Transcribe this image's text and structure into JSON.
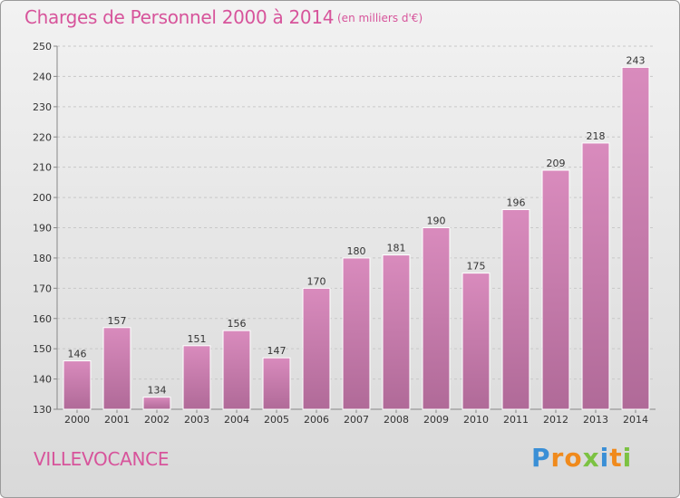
{
  "chart_data": {
    "type": "bar",
    "title": "Charges de Personnel 2000 à 2014",
    "subtitle": "(en milliers d'€)",
    "categories": [
      "2000",
      "2001",
      "2002",
      "2003",
      "2004",
      "2005",
      "2006",
      "2007",
      "2008",
      "2009",
      "2010",
      "2011",
      "2012",
      "2013",
      "2014"
    ],
    "values": [
      146,
      157,
      134,
      151,
      156,
      147,
      170,
      180,
      181,
      190,
      175,
      196,
      209,
      218,
      243
    ],
    "ylim": [
      130,
      250
    ],
    "yticks": [
      130,
      140,
      150,
      160,
      170,
      180,
      190,
      200,
      210,
      220,
      230,
      240,
      250
    ],
    "xlabel": "",
    "ylabel": "",
    "grid": true,
    "bar_color": "#d98bbd",
    "bar_color_dark": "#b06a98"
  },
  "commune": "VILLEVOCANCE",
  "brand": {
    "letters": [
      "P",
      "r",
      "o",
      "x",
      "i",
      "t",
      "i"
    ],
    "colors": [
      "#3a8fd6",
      "#f08a1c",
      "#f08a1c",
      "#7cc242",
      "#3a8fd6",
      "#f08a1c",
      "#7cc242"
    ]
  },
  "colors": {
    "title": "#d7549b",
    "axis": "#888888",
    "grid": "#c8c8c8"
  }
}
